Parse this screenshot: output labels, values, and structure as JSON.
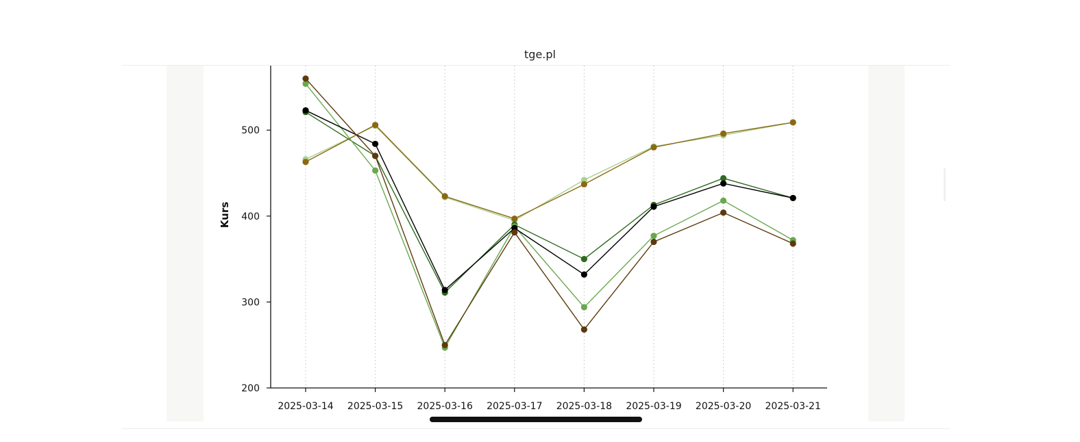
{
  "page": {
    "title": "tge.pl"
  },
  "chart_data": {
    "type": "line",
    "title": "tge.pl",
    "xlabel": "",
    "ylabel": "Kurs",
    "ylim": [
      200,
      575
    ],
    "yticks": [
      200,
      300,
      400,
      500
    ],
    "grid": {
      "x": true,
      "y": false
    },
    "categories": [
      "2025-03-14",
      "2025-03-15",
      "2025-03-16",
      "2025-03-17",
      "2025-03-18",
      "2025-03-19",
      "2025-03-20",
      "2025-03-21"
    ],
    "series": [
      {
        "color": "#a9d18e",
        "values": [
          466,
          505,
          422,
          395,
          442,
          481,
          494,
          509
        ]
      },
      {
        "color": "#8b6914",
        "values": [
          463,
          506,
          423,
          397,
          437,
          480,
          496,
          509
        ]
      },
      {
        "color": "#2e6b1f",
        "values": [
          521,
          470,
          311,
          390,
          350,
          413,
          444,
          421
        ]
      },
      {
        "color": "#6aa84f",
        "values": [
          554,
          453,
          247,
          388,
          294,
          377,
          418,
          372
        ]
      },
      {
        "color": "#000000",
        "values": [
          523,
          484,
          314,
          386,
          332,
          411,
          438,
          421
        ]
      },
      {
        "color": "#5c3a0e",
        "values": [
          560,
          470,
          250,
          381,
          268,
          370,
          404,
          368
        ]
      }
    ]
  }
}
